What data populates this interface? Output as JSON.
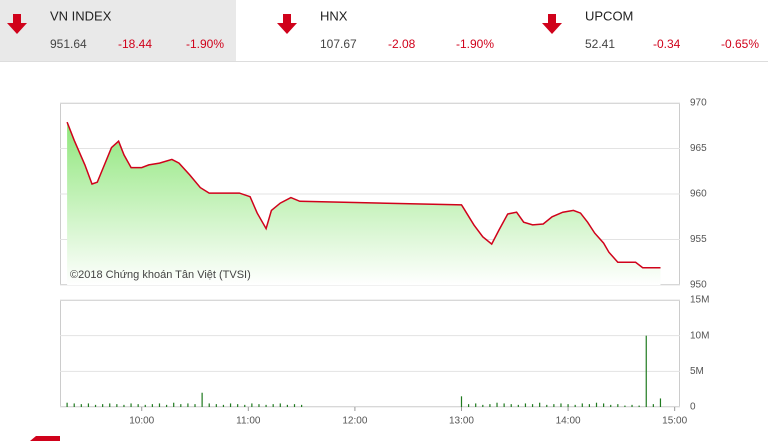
{
  "indices": [
    {
      "name": "VN INDEX",
      "value": "951.64",
      "change": "-18.44",
      "percent": "-1.90%"
    },
    {
      "name": "HNX",
      "value": "107.67",
      "change": "-2.08",
      "percent": "-1.90%"
    },
    {
      "name": "UPCOM",
      "value": "52.41",
      "change": "-0.34",
      "percent": "-0.65%"
    }
  ],
  "chart_data": [
    {
      "type": "line",
      "annotation": "©2018 Chứng khoán Tân Việt (TVSI)",
      "color": "#d0021b",
      "x": [
        558,
        562,
        568,
        572,
        575,
        579,
        583,
        587,
        590,
        594,
        600,
        604,
        610,
        617,
        621,
        627,
        633,
        638,
        647,
        655,
        661,
        665,
        670,
        673,
        678,
        684,
        689,
        780,
        781,
        787,
        792,
        797,
        801,
        806,
        811,
        815,
        820,
        826,
        831,
        837,
        843,
        847,
        851,
        855,
        860,
        863,
        868,
        878,
        882,
        892
      ],
      "values": [
        967.9,
        965.9,
        963.2,
        961.1,
        961.3,
        963.2,
        965.1,
        965.8,
        964.3,
        962.9,
        962.9,
        963.2,
        963.4,
        963.8,
        963.4,
        962.1,
        960.7,
        960.1,
        960.1,
        960.1,
        959.7,
        957.9,
        956.2,
        958.2,
        959.0,
        959.6,
        959.2,
        958.8,
        958.5,
        956.6,
        955.3,
        954.5,
        956.0,
        957.8,
        958.0,
        956.9,
        956.6,
        956.7,
        957.5,
        958.0,
        958.2,
        957.9,
        956.9,
        955.7,
        954.6,
        953.6,
        952.5,
        952.5,
        951.9,
        951.9
      ],
      "xlim": [
        554,
        903
      ],
      "ylim": [
        950,
        970
      ],
      "yticks": [
        950,
        955,
        960,
        965,
        970
      ],
      "grid": true
    },
    {
      "type": "bar",
      "color": "#1f7a1f",
      "x": [
        558,
        562,
        566,
        570,
        574,
        578,
        582,
        586,
        590,
        594,
        598,
        602,
        606,
        610,
        614,
        618,
        622,
        626,
        630,
        634,
        638,
        642,
        646,
        650,
        654,
        658,
        662,
        666,
        670,
        674,
        678,
        682,
        686,
        690,
        780,
        784,
        788,
        792,
        796,
        800,
        804,
        808,
        812,
        816,
        820,
        824,
        828,
        832,
        836,
        840,
        844,
        848,
        852,
        856,
        860,
        864,
        868,
        872,
        876,
        880,
        884,
        888,
        892
      ],
      "values": [
        0.6,
        0.5,
        0.4,
        0.5,
        0.3,
        0.4,
        0.5,
        0.4,
        0.3,
        0.5,
        0.4,
        0.3,
        0.4,
        0.5,
        0.3,
        0.6,
        0.4,
        0.5,
        0.4,
        2.0,
        0.5,
        0.4,
        0.3,
        0.5,
        0.4,
        0.3,
        0.5,
        0.4,
        0.3,
        0.4,
        0.5,
        0.3,
        0.4,
        0.3,
        1.5,
        0.4,
        0.5,
        0.3,
        0.4,
        0.6,
        0.5,
        0.4,
        0.3,
        0.5,
        0.4,
        0.6,
        0.3,
        0.4,
        0.5,
        0.4,
        0.3,
        0.5,
        0.4,
        0.6,
        0.5,
        0.3,
        0.4,
        0.2,
        0.3,
        0.2,
        10,
        0.4,
        1.2
      ],
      "xlim": [
        554,
        903
      ],
      "ylim": [
        0,
        15
      ],
      "yticks": [
        0,
        {
          "value": 5,
          "label": "5M"
        },
        {
          "value": 10,
          "label": "10M"
        },
        {
          "value": 15,
          "label": "15M"
        }
      ],
      "xticks": [
        {
          "value": 600,
          "label": "10:00"
        },
        {
          "value": 660,
          "label": "11:00"
        },
        {
          "value": 720,
          "label": "12:00"
        },
        {
          "value": 780,
          "label": "13:00"
        },
        {
          "value": 840,
          "label": "14:00"
        },
        {
          "value": 900,
          "label": "15:00"
        }
      ],
      "grid": true
    }
  ]
}
